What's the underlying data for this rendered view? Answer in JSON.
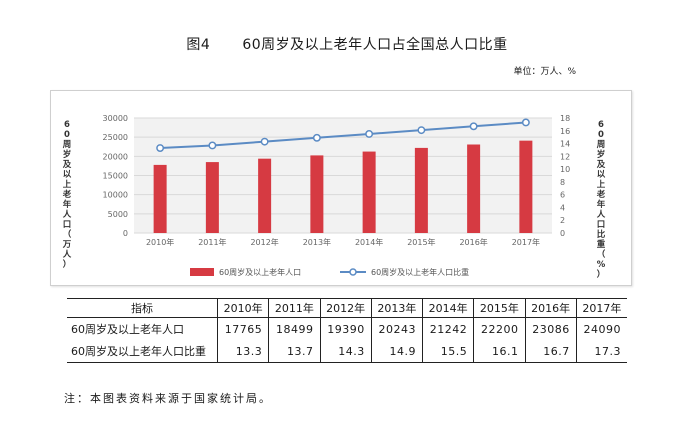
{
  "figure": {
    "label": "图4",
    "title": "60周岁及以上老年人口占全国总人口比重",
    "unit": "单位：万人、%"
  },
  "chart_data": {
    "type": "bar+line",
    "categories": [
      "2010年",
      "2011年",
      "2012年",
      "2013年",
      "2014年",
      "2015年",
      "2016年",
      "2017年"
    ],
    "series": [
      {
        "name": "60周岁及以上老年人口",
        "type": "bar",
        "axis": "left",
        "color": "#d63a42",
        "values": [
          17765,
          18499,
          19390,
          20243,
          21242,
          22200,
          23086,
          24090
        ]
      },
      {
        "name": "60周岁及以上老年人口比重",
        "type": "line",
        "axis": "right",
        "color": "#5b8bc4",
        "values": [
          13.3,
          13.7,
          14.3,
          14.9,
          15.5,
          16.1,
          16.7,
          17.3
        ]
      }
    ],
    "y_left": {
      "min": 0,
      "max": 30000,
      "step": 5000,
      "label": "60周岁及以上老年人口（万人）"
    },
    "y_right": {
      "min": 0,
      "max": 18,
      "step": 2,
      "label": "60周岁及以上老年人口比重（%）"
    },
    "grid": true,
    "legend": "bottom"
  },
  "table": {
    "header": [
      "指标",
      "2010年",
      "2011年",
      "2012年",
      "2013年",
      "2014年",
      "2015年",
      "2016年",
      "2017年"
    ],
    "rows": [
      {
        "label": "60周岁及以上老年人口",
        "values": [
          "17765",
          "18499",
          "19390",
          "20243",
          "21242",
          "22200",
          "23086",
          "24090"
        ]
      },
      {
        "label": "60周岁及以上老年人口比重",
        "values": [
          "13.3",
          "13.7",
          "14.3",
          "14.9",
          "15.5",
          "16.1",
          "16.7",
          "17.3"
        ]
      }
    ]
  },
  "note": "注：本图表资料来源于国家统计局。"
}
